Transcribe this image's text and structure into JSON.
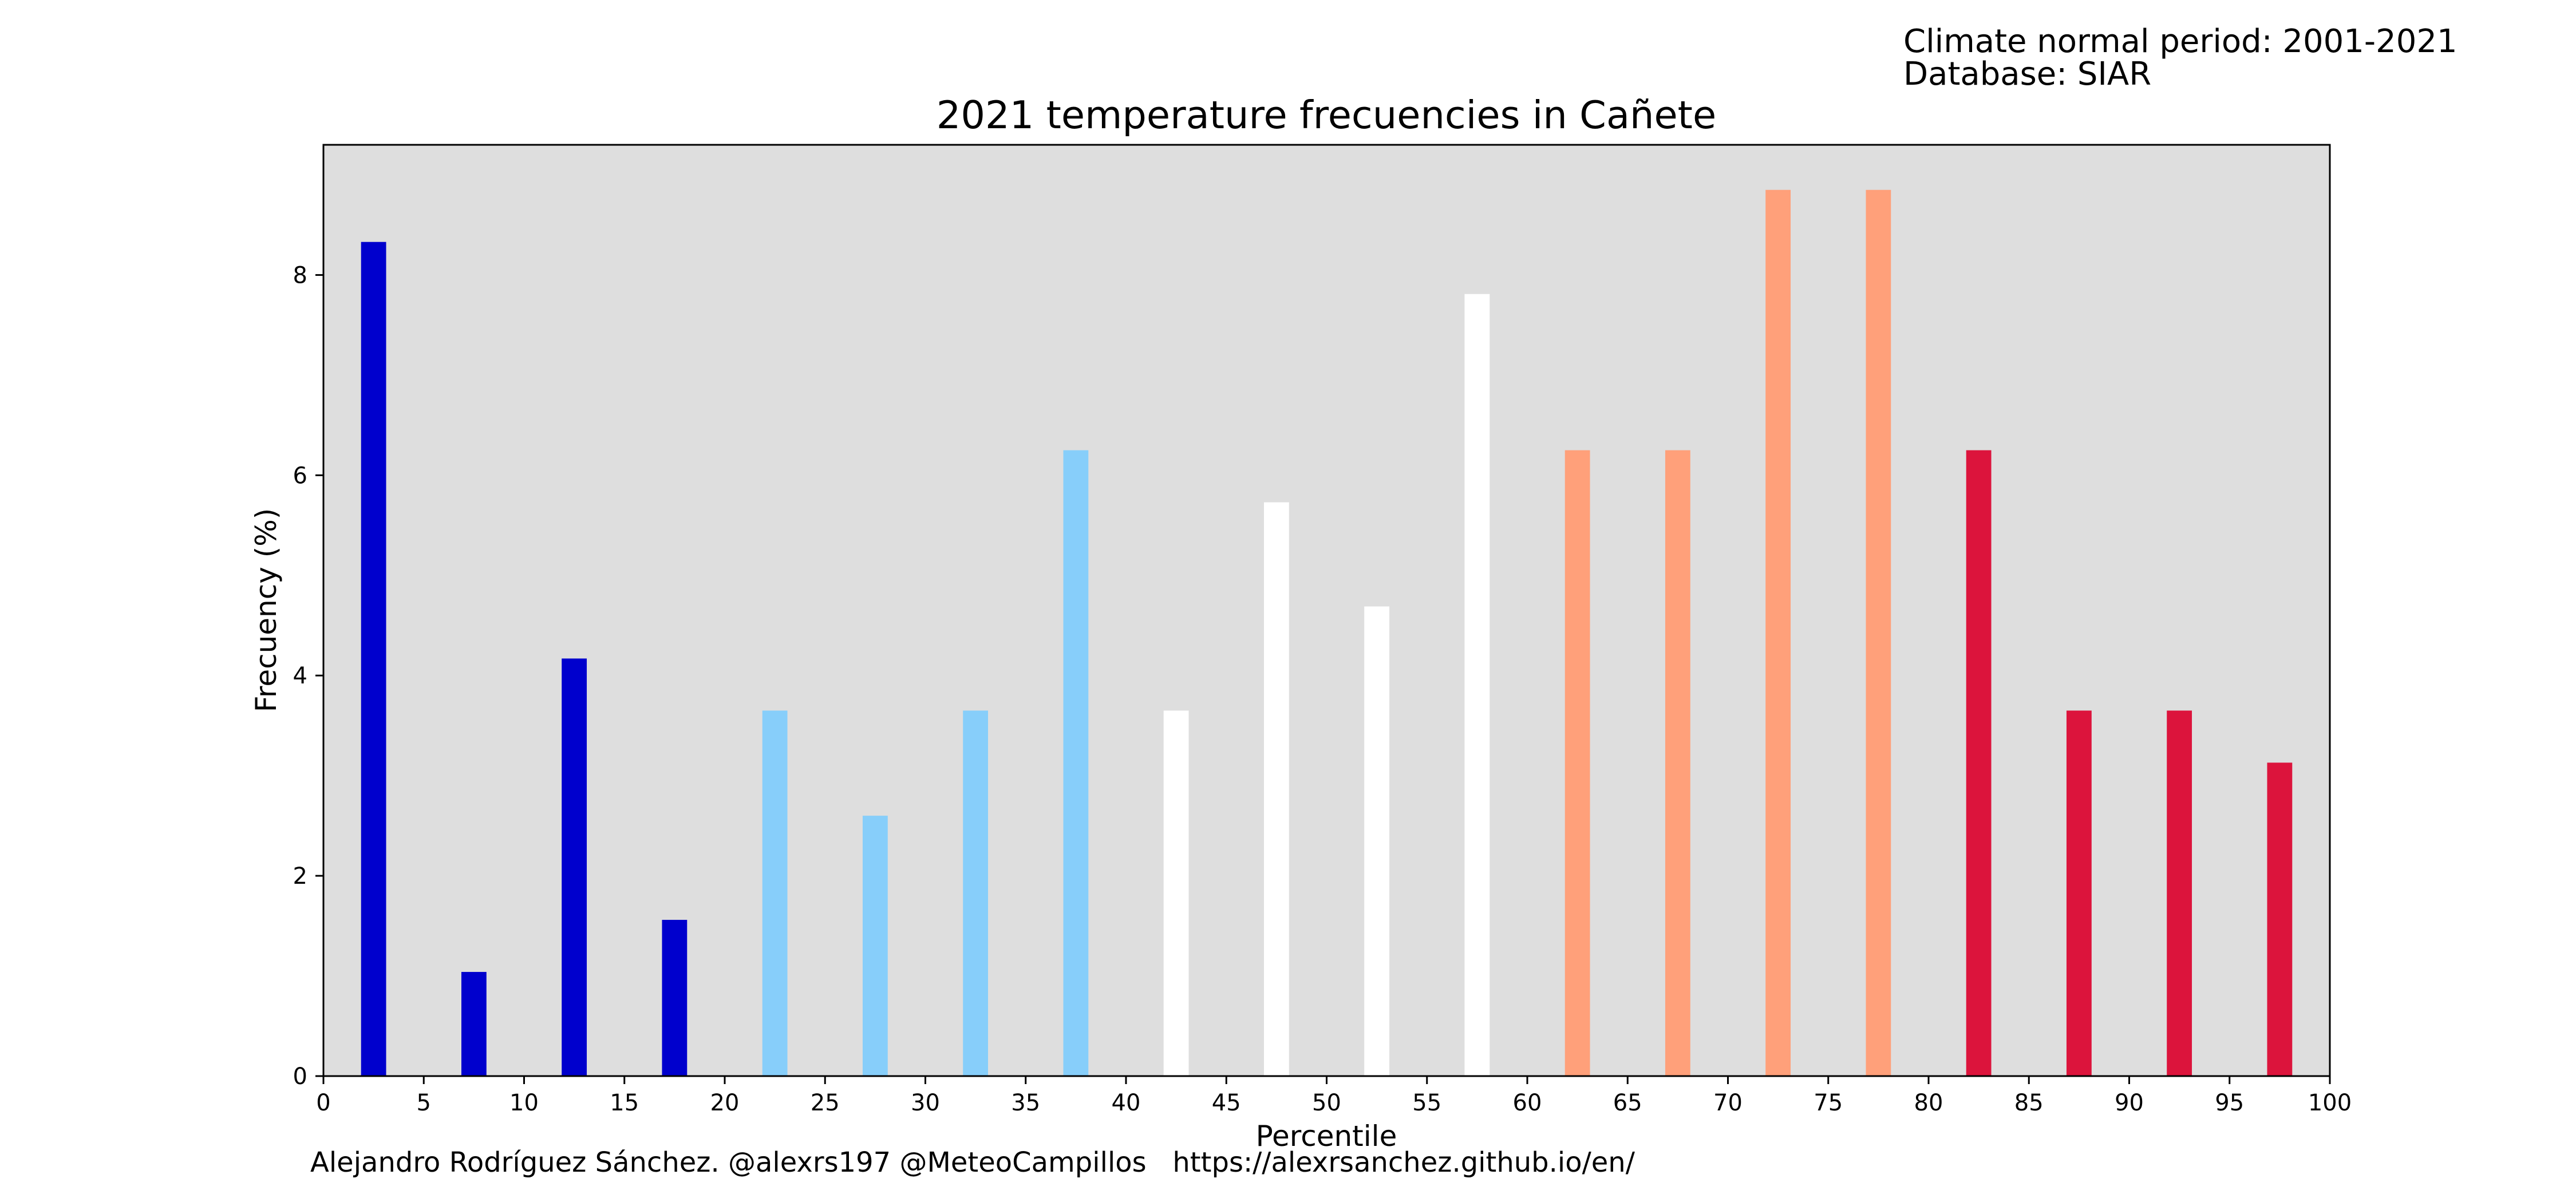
{
  "header": {
    "period": "Climate normal period: 2001-2021",
    "database": "Database: SIAR"
  },
  "footer": {
    "credit": "Alejandro Rodríguez Sánchez. @alexrs197 @MeteoCampillos   https://alexrsanchez.github.io/en/"
  },
  "colors": {
    "plot_background": "#dedede",
    "dark_blue": "#0000cd",
    "light_blue": "#87cefa",
    "white": "#ffffff",
    "salmon": "#ffa07a",
    "crimson": "#dc143c"
  },
  "chart_data": {
    "type": "bar",
    "title": "2021 temperature frecuencies in Cañete",
    "xlabel": "Percentile",
    "ylabel": "Frecuency (%)",
    "xlim": [
      0,
      100
    ],
    "ylim": [
      0,
      9.3
    ],
    "grid": false,
    "legend": "none",
    "x_ticks": [
      "0",
      "5",
      "10",
      "15",
      "20",
      "25",
      "30",
      "35",
      "40",
      "45",
      "50",
      "55",
      "60",
      "65",
      "70",
      "75",
      "80",
      "85",
      "90",
      "95",
      "100"
    ],
    "y_ticks": [
      "0",
      "2",
      "4",
      "6",
      "8"
    ],
    "bar_width_units": 1.25,
    "bars": [
      {
        "x": 2.5,
        "value": 8.33,
        "color": "#0000cd"
      },
      {
        "x": 7.5,
        "value": 1.04,
        "color": "#0000cd"
      },
      {
        "x": 12.5,
        "value": 4.17,
        "color": "#0000cd"
      },
      {
        "x": 17.5,
        "value": 1.56,
        "color": "#0000cd"
      },
      {
        "x": 22.5,
        "value": 3.65,
        "color": "#87cefa"
      },
      {
        "x": 27.5,
        "value": 2.6,
        "color": "#87cefa"
      },
      {
        "x": 32.5,
        "value": 3.65,
        "color": "#87cefa"
      },
      {
        "x": 37.5,
        "value": 6.25,
        "color": "#87cefa"
      },
      {
        "x": 42.5,
        "value": 3.65,
        "color": "#ffffff"
      },
      {
        "x": 47.5,
        "value": 5.73,
        "color": "#ffffff"
      },
      {
        "x": 52.5,
        "value": 4.69,
        "color": "#ffffff"
      },
      {
        "x": 57.5,
        "value": 7.81,
        "color": "#ffffff"
      },
      {
        "x": 62.5,
        "value": 6.25,
        "color": "#ffa07a"
      },
      {
        "x": 67.5,
        "value": 6.25,
        "color": "#ffa07a"
      },
      {
        "x": 72.5,
        "value": 8.85,
        "color": "#ffa07a"
      },
      {
        "x": 77.5,
        "value": 8.85,
        "color": "#ffa07a"
      },
      {
        "x": 82.5,
        "value": 6.25,
        "color": "#dc143c"
      },
      {
        "x": 87.5,
        "value": 3.65,
        "color": "#dc143c"
      },
      {
        "x": 92.5,
        "value": 3.65,
        "color": "#dc143c"
      },
      {
        "x": 97.5,
        "value": 3.13,
        "color": "#dc143c"
      }
    ]
  }
}
